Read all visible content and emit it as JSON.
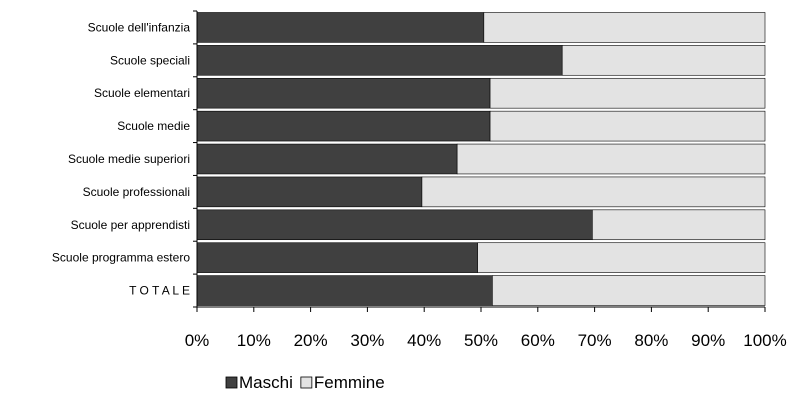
{
  "chart_data": {
    "type": "bar",
    "orientation": "horizontal",
    "stacked": true,
    "percent_stacked": true,
    "categories": [
      "Scuole dell'infanzia",
      "Scuole speciali",
      "Scuole elementari",
      "Scuole medie",
      "Scuole medie superiori",
      "Scuole professionali",
      "Scuole per apprendisti",
      "Scuole programma estero",
      "T O T A L E"
    ],
    "series": [
      {
        "name": "Maschi",
        "color": "#404040",
        "values": [
          50.5,
          64.3,
          51.6,
          51.6,
          45.8,
          39.6,
          69.6,
          49.4,
          52.0
        ]
      },
      {
        "name": "Femmine",
        "color": "#e3e3e3",
        "values": [
          49.5,
          35.7,
          48.4,
          48.4,
          54.2,
          60.4,
          30.4,
          50.6,
          48.0
        ]
      }
    ],
    "x_ticks": [
      "0%",
      "10%",
      "20%",
      "30%",
      "40%",
      "50%",
      "60%",
      "70%",
      "80%",
      "90%",
      "100%"
    ],
    "xlim": [
      0,
      100
    ],
    "legend_position": "bottom",
    "grid": false,
    "title": "",
    "xlabel": "",
    "ylabel": ""
  }
}
